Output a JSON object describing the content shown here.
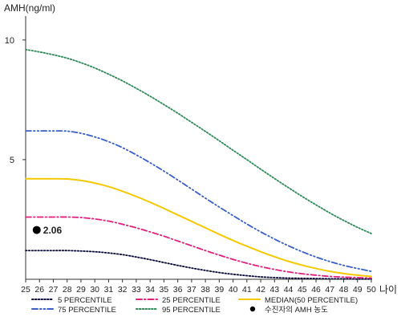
{
  "chart_data": {
    "type": "line",
    "ylabel": "AMH(ng/ml)",
    "xlabel": "나이",
    "x": [
      25,
      26,
      27,
      28,
      29,
      30,
      31,
      32,
      33,
      34,
      35,
      36,
      37,
      38,
      39,
      40,
      41,
      42,
      43,
      44,
      45,
      46,
      47,
      48,
      49,
      50
    ],
    "x_ticks": [
      "25",
      "26",
      "27",
      "28",
      "29",
      "30",
      "31",
      "32",
      "33",
      "34",
      "35",
      "36",
      "37",
      "38",
      "39",
      "40",
      "41",
      "42",
      "43",
      "44",
      "45",
      "46",
      "47",
      "48",
      "49",
      "50"
    ],
    "xlim": [
      25,
      50
    ],
    "ylim": [
      0,
      11
    ],
    "y_ticks": [
      5,
      10
    ],
    "grid": false,
    "legend_position": "bottom",
    "series": [
      {
        "name": "5 PERCENTILE",
        "color": "#0a0a3a",
        "dash": "dot",
        "values": [
          1.2,
          1.2,
          1.2,
          1.2,
          1.18,
          1.15,
          1.1,
          1.03,
          0.93,
          0.82,
          0.7,
          0.58,
          0.47,
          0.37,
          0.28,
          0.21,
          0.15,
          0.1,
          0.07,
          0.05,
          0.04,
          0.03,
          0.02,
          0.02,
          0.01,
          0.01
        ]
      },
      {
        "name": "25 PERCENTILE",
        "color": "#e0207f",
        "dash": "dashdot",
        "values": [
          2.6,
          2.6,
          2.6,
          2.6,
          2.58,
          2.52,
          2.43,
          2.3,
          2.15,
          1.98,
          1.8,
          1.6,
          1.4,
          1.2,
          1.01,
          0.83,
          0.67,
          0.53,
          0.41,
          0.31,
          0.23,
          0.17,
          0.12,
          0.09,
          0.07,
          0.05
        ]
      },
      {
        "name": "MEDIAN(50 PERCENTILE)",
        "color": "#f5c800",
        "dash": "solid",
        "values": [
          4.2,
          4.2,
          4.2,
          4.19,
          4.13,
          4.02,
          3.87,
          3.68,
          3.46,
          3.22,
          2.96,
          2.69,
          2.42,
          2.15,
          1.88,
          1.62,
          1.38,
          1.15,
          0.94,
          0.75,
          0.59,
          0.45,
          0.33,
          0.24,
          0.17,
          0.12
        ]
      },
      {
        "name": "75 PERCENTILE",
        "color": "#3a5fc8",
        "dash": "dashdotdot",
        "values": [
          6.2,
          6.2,
          6.2,
          6.19,
          6.1,
          5.95,
          5.75,
          5.5,
          5.2,
          4.87,
          4.52,
          4.15,
          3.77,
          3.39,
          3.02,
          2.66,
          2.31,
          1.98,
          1.68,
          1.4,
          1.15,
          0.93,
          0.74,
          0.58,
          0.45,
          0.33
        ]
      },
      {
        "name": "95 PERCENTILE",
        "color": "#2e8b57",
        "dash": "dot",
        "values": [
          9.6,
          9.5,
          9.38,
          9.24,
          9.05,
          8.83,
          8.57,
          8.29,
          7.98,
          7.65,
          7.3,
          6.94,
          6.56,
          6.18,
          5.79,
          5.39,
          5.0,
          4.6,
          4.21,
          3.83,
          3.46,
          3.11,
          2.77,
          2.46,
          2.17,
          1.91
        ]
      }
    ],
    "annotations": [
      {
        "type": "point",
        "name": "수진자의 AMH 농도",
        "x": 25.8,
        "y": 2.06,
        "label": "2.06",
        "color": "#000000"
      }
    ]
  },
  "legend_items": [
    {
      "label": "5 PERCENTILE",
      "color": "#0a0a3a",
      "dash": "dot"
    },
    {
      "label": "25 PERCENTILE",
      "color": "#e0207f",
      "dash": "dashdot"
    },
    {
      "label": "MEDIAN(50 PERCENTILE)",
      "color": "#f5c800",
      "dash": "solid"
    },
    {
      "label": "75 PERCENTILE",
      "color": "#3a5fc8",
      "dash": "dashdotdot"
    },
    {
      "label": "95 PERCENTILE",
      "color": "#2e8b57",
      "dash": "dot"
    },
    {
      "label": "수진자의 AMH 농도",
      "color": "#000000",
      "marker": "circle"
    }
  ]
}
